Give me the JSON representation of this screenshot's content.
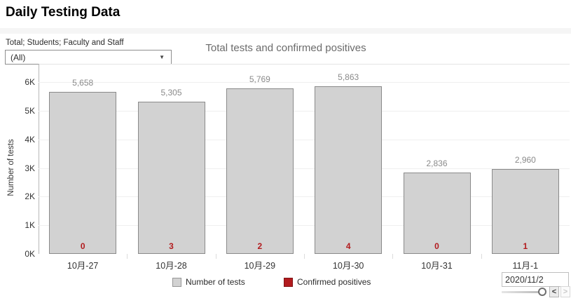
{
  "header": {
    "title": "Daily Testing Data"
  },
  "filter": {
    "label": "Total; Students; Faculty and Staff",
    "value": "(All)",
    "caret": "▼"
  },
  "chart_data": {
    "type": "bar",
    "title": "Total tests and confirmed positives",
    "ylabel": "Number of tests",
    "ylim": [
      0,
      6000
    ],
    "ytick_step": 1000,
    "ytick_labels": [
      "0K",
      "1K",
      "2K",
      "3K",
      "4K",
      "5K",
      "6K"
    ],
    "grid": "horizontal",
    "legend_position": "bottom",
    "categories": [
      "10月-27",
      "10月-28",
      "10月-29",
      "10月-30",
      "10月-31",
      "11月-1"
    ],
    "series": [
      {
        "name": "Number of tests",
        "color": "#d2d2d2",
        "values": [
          5658,
          5305,
          5769,
          5863,
          2836,
          2960
        ],
        "value_labels": [
          "5,658",
          "5,305",
          "5,769",
          "5,863",
          "2,836",
          "2,960"
        ]
      },
      {
        "name": "Confirmed positives",
        "color": "#b21b1e",
        "values": [
          0,
          3,
          2,
          4,
          0,
          1
        ]
      }
    ]
  },
  "date_control": {
    "value": "2020/11/2",
    "prev_label": "<",
    "next_label": ">"
  },
  "colors": {
    "positive_text": "#b21b1e",
    "bar_fill": "#d2d2d2",
    "bar_border": "#8a8a8a"
  }
}
